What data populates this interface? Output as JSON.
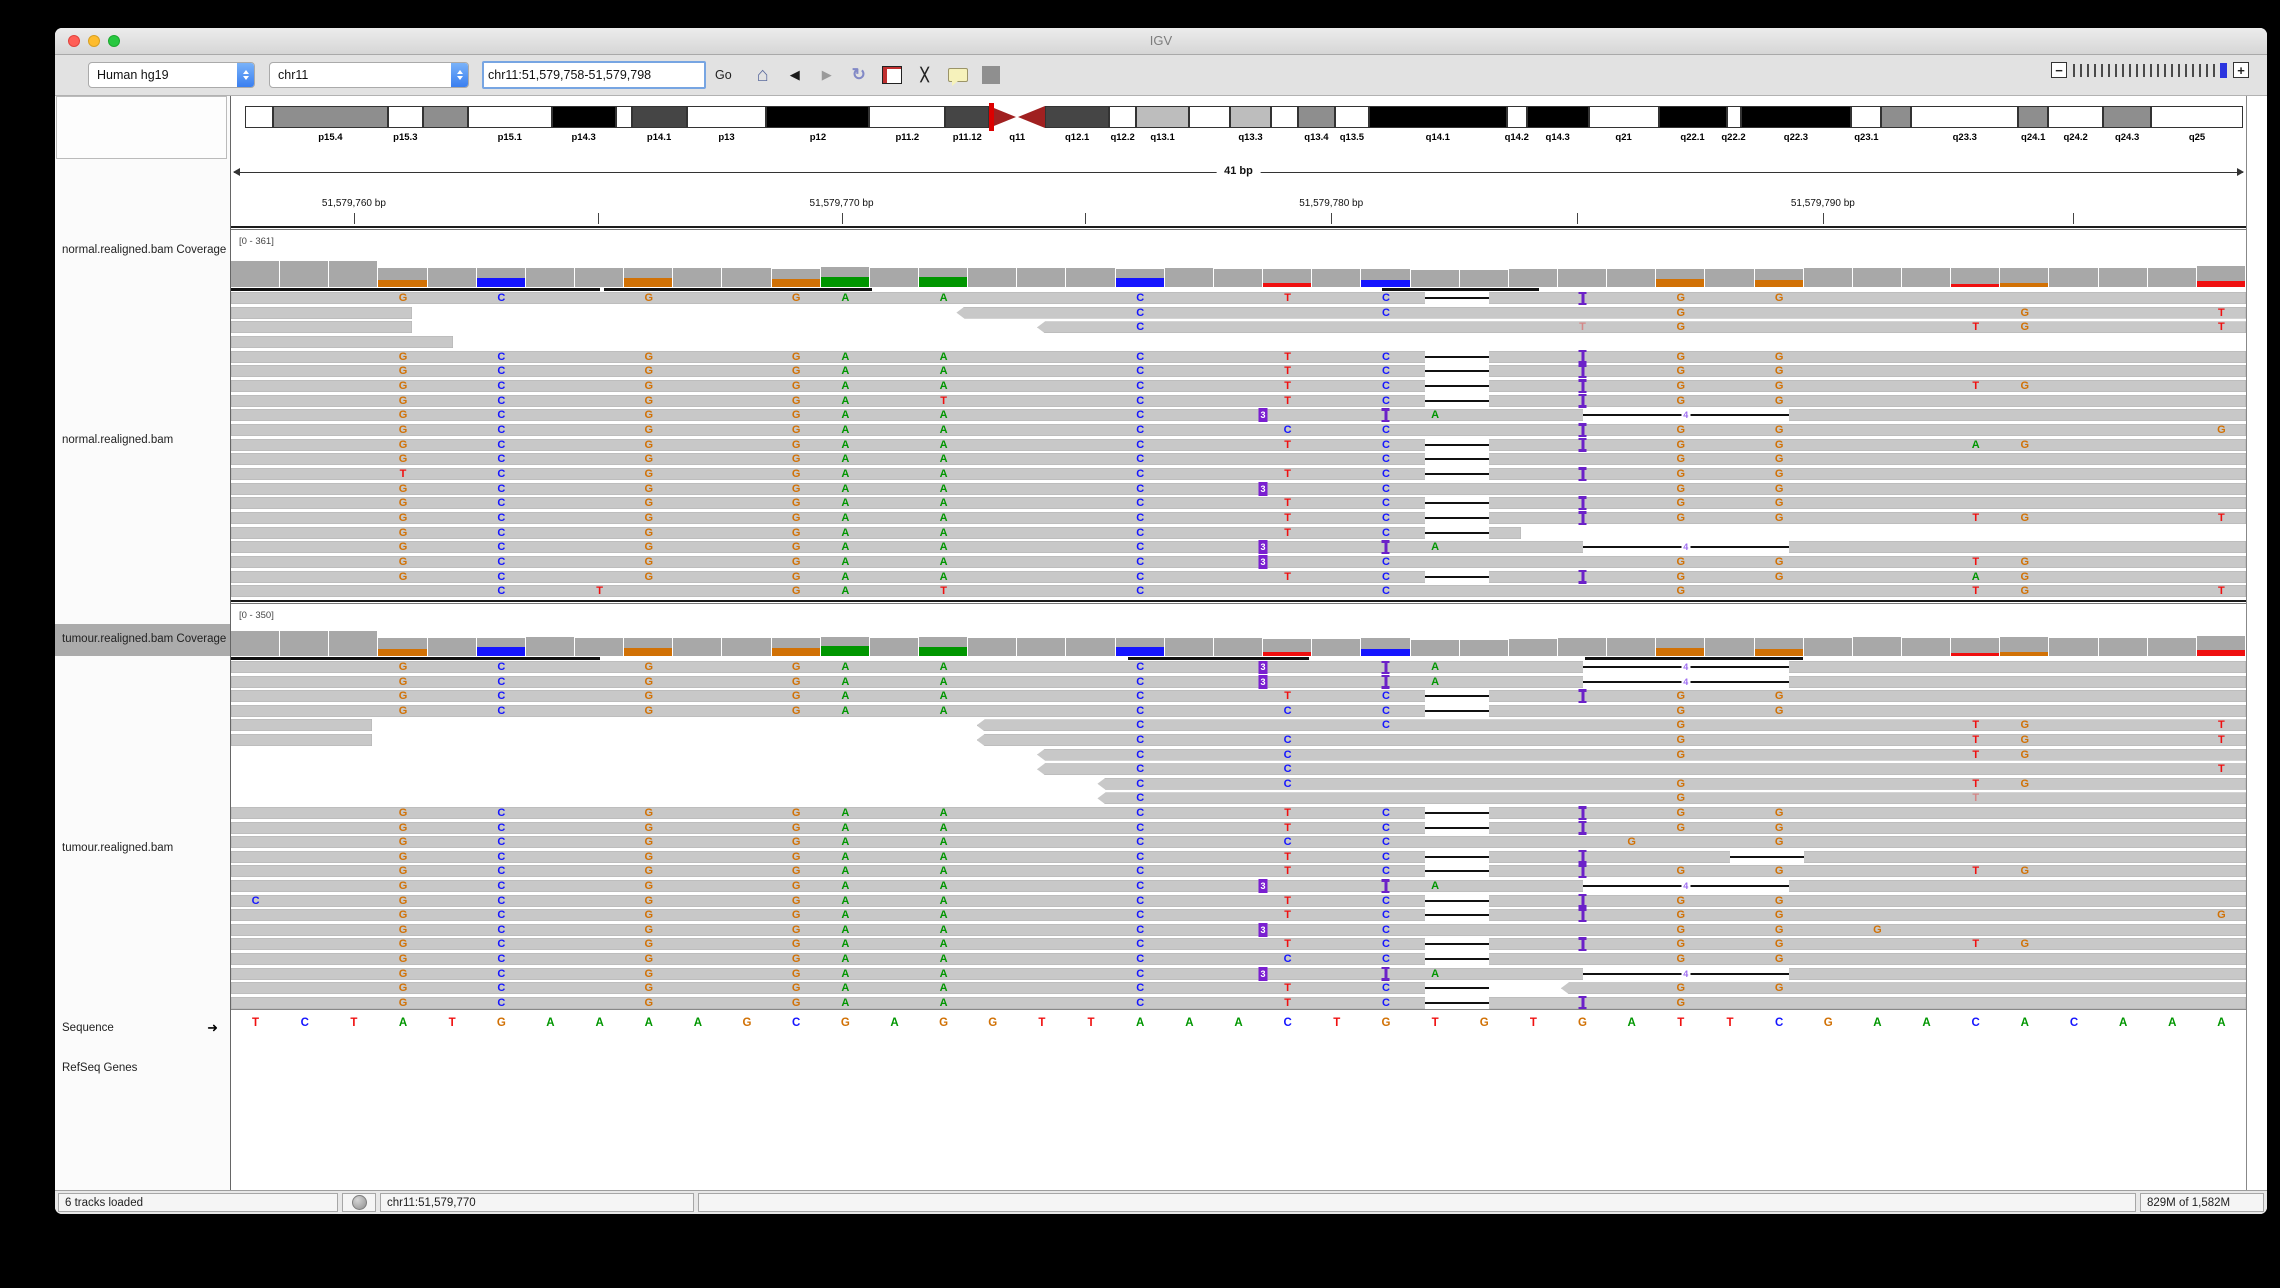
{
  "window": {
    "title": "IGV"
  },
  "toolbar": {
    "genome": "Human hg19",
    "chromosome": "chr11",
    "locus": "chr11:51,579,758-51,579,798",
    "go_label": "Go",
    "icons": [
      {
        "name": "home-icon",
        "glyph": "⌂"
      },
      {
        "name": "back-icon",
        "glyph": "◀"
      },
      {
        "name": "forward-icon",
        "glyph": "▶"
      },
      {
        "name": "refresh-icon",
        "glyph": "↻"
      },
      {
        "name": "region-tool-icon",
        "glyph": ""
      },
      {
        "name": "fit-window-icon",
        "glyph": "╳"
      },
      {
        "name": "tooltip-icon",
        "glyph": ""
      },
      {
        "name": "toolbar-separator",
        "glyph": ""
      }
    ],
    "zoom": {
      "tick_count": 21,
      "minus_label": "−",
      "plus_label": "+",
      "active_color": "#2b35df"
    }
  },
  "ideogram": {
    "shade_colors": {
      "w": "#ffffff",
      "l": "#bdbdbd",
      "g": "#8e8e8e",
      "d": "#454545",
      "b": "#000000"
    },
    "marker_pct": 37.25,
    "bands": [
      {
        "x": 0,
        "w": 1.4,
        "shade": "w",
        "label": ""
      },
      {
        "x": 1.4,
        "w": 5.75,
        "shade": "g",
        "label": "p15.4"
      },
      {
        "x": 7.15,
        "w": 1.75,
        "shade": "w",
        "label": "p15.3"
      },
      {
        "x": 8.9,
        "w": 2.25,
        "shade": "g",
        "label": ""
      },
      {
        "x": 11.15,
        "w": 4.2,
        "shade": "w",
        "label": "p15.1"
      },
      {
        "x": 15.35,
        "w": 3.2,
        "shade": "b",
        "label": "p14.3"
      },
      {
        "x": 18.55,
        "w": 0.8,
        "shade": "w",
        "label": ""
      },
      {
        "x": 19.35,
        "w": 2.75,
        "shade": "d",
        "label": "p14.1"
      },
      {
        "x": 22.1,
        "w": 4.0,
        "shade": "w",
        "label": "p13"
      },
      {
        "x": 26.1,
        "w": 5.15,
        "shade": "b",
        "label": "p12"
      },
      {
        "x": 31.25,
        "w": 3.8,
        "shade": "w",
        "label": "p11.2"
      },
      {
        "x": 35.05,
        "w": 2.2,
        "shade": "d",
        "label": "p11.12"
      },
      {
        "x": 37.25,
        "w": 2.8,
        "shade": "a",
        "label": "q11"
      },
      {
        "x": 40.05,
        "w": 3.2,
        "shade": "d",
        "label": "q12.1"
      },
      {
        "x": 43.25,
        "w": 1.35,
        "shade": "w",
        "label": "q12.2"
      },
      {
        "x": 44.6,
        "w": 2.65,
        "shade": "l",
        "label": "q13.1"
      },
      {
        "x": 47.25,
        "w": 2.05,
        "shade": "w",
        "label": ""
      },
      {
        "x": 49.3,
        "w": 2.05,
        "shade": "l",
        "label": "q13.3"
      },
      {
        "x": 51.35,
        "w": 1.35,
        "shade": "w",
        "label": ""
      },
      {
        "x": 52.7,
        "w": 1.85,
        "shade": "g",
        "label": "q13.4"
      },
      {
        "x": 54.55,
        "w": 1.7,
        "shade": "w",
        "label": "q13.5"
      },
      {
        "x": 56.25,
        "w": 6.9,
        "shade": "b",
        "label": "q14.1"
      },
      {
        "x": 63.15,
        "w": 1.0,
        "shade": "w",
        "label": "q14.2"
      },
      {
        "x": 64.15,
        "w": 3.1,
        "shade": "b",
        "label": "q14.3"
      },
      {
        "x": 67.25,
        "w": 3.5,
        "shade": "w",
        "label": "q21"
      },
      {
        "x": 70.75,
        "w": 3.4,
        "shade": "b",
        "label": "q22.1"
      },
      {
        "x": 74.15,
        "w": 0.7,
        "shade": "w",
        "label": "q22.2"
      },
      {
        "x": 74.85,
        "w": 5.55,
        "shade": "b",
        "label": "q22.3"
      },
      {
        "x": 80.4,
        "w": 1.5,
        "shade": "w",
        "label": "q23.1"
      },
      {
        "x": 81.9,
        "w": 1.5,
        "shade": "g",
        "label": ""
      },
      {
        "x": 83.4,
        "w": 5.35,
        "shade": "w",
        "label": "q23.3"
      },
      {
        "x": 88.75,
        "w": 1.5,
        "shade": "g",
        "label": "q24.1"
      },
      {
        "x": 90.25,
        "w": 2.75,
        "shade": "w",
        "label": "q24.2"
      },
      {
        "x": 93.0,
        "w": 2.4,
        "shade": "g",
        "label": "q24.3"
      },
      {
        "x": 95.4,
        "w": 4.6,
        "shade": "w",
        "label": "q25"
      }
    ]
  },
  "ruler": {
    "span_label": "41 bp",
    "ticks": [
      {
        "p": 6.1,
        "label": "51,579,760 bp"
      },
      {
        "p": 18.2,
        "label": ""
      },
      {
        "p": 30.3,
        "label": "51,579,770 bp"
      },
      {
        "p": 42.4,
        "label": ""
      },
      {
        "p": 54.6,
        "label": "51,579,780 bp"
      },
      {
        "p": 66.8,
        "label": ""
      },
      {
        "p": 79.0,
        "label": "51,579,790 bp"
      },
      {
        "p": 91.4,
        "label": ""
      }
    ]
  },
  "colors": {
    "bases": {
      "A": "#009600",
      "C": "#1515ff",
      "G": "#d17105",
      "T": "#ef1010"
    },
    "insertion": "#6b21c8",
    "read_gray": "#c8c8c8",
    "coverage_gray": "#a8a8a8"
  },
  "tracks": {
    "normal_coverage": {
      "label": "normal.realigned.bam Coverage",
      "range": "[0 - 361]",
      "heights": [
        1,
        1,
        1,
        0.72,
        0.73,
        0.72,
        0.74,
        0.72,
        0.73,
        0.72,
        0.72,
        0.7,
        0.76,
        0.73,
        0.74,
        0.72,
        0.73,
        0.72,
        0.71,
        0.72,
        0.7,
        0.68,
        0.69,
        0.7,
        0.64,
        0.64,
        0.69,
        0.7,
        0.71,
        0.7,
        0.71,
        0.71,
        0.72,
        0.74,
        0.72,
        0.72,
        0.74,
        0.73,
        0.73,
        0.73,
        0.8
      ],
      "alleles": {
        "3": [
          "G",
          0.4
        ],
        "5": [
          "C",
          0.5
        ],
        "8": [
          "G",
          0.45
        ],
        "11": [
          "G",
          0.45
        ],
        "12": [
          "A",
          0.5
        ],
        "14": [
          "A",
          0.5
        ],
        "18": [
          "C",
          0.5
        ],
        "21": [
          "T",
          0.2
        ],
        "23": [
          "C",
          0.4
        ],
        "29": [
          "G",
          0.45
        ],
        "31": [
          "G",
          0.4
        ],
        "35": [
          "T",
          0.15
        ],
        "36": [
          "G",
          0.2
        ],
        "40": [
          "T",
          0.3
        ]
      },
      "downsample_marks": [
        [
          0,
          18.3
        ],
        [
          18.5,
          31.8
        ],
        [
          57.1,
          64.9
        ]
      ]
    },
    "normal_reads": {
      "label": "normal.realigned.bam",
      "rows": [
        {
          "r": [
            {
              "s": 0,
              "e": 100,
              "m": "3G 5C 8G 11G 12A 14A 18C 21T 23C 29G 31G",
              "d": "24.3:1.3",
              "i": "27.5"
            }
          ]
        },
        {
          "r": [
            {
              "s": 0,
              "e": 9,
              "m": ""
            },
            {
              "s": 36,
              "e": 100,
              "m": "18C 23C 29G 36G 40T",
              "lp": 1
            }
          ]
        },
        {
          "r": [
            {
              "s": 0,
              "e": 9,
              "m": ""
            },
            {
              "s": 40,
              "e": 100,
              "m": "18C 27T* 29G 35T 36G 40T",
              "lp": 1
            }
          ]
        },
        {
          "r": [
            {
              "s": 0,
              "e": 11,
              "m": ""
            }
          ]
        },
        {
          "r": [
            {
              "s": 0,
              "e": 100,
              "m": "3G 5C 8G 11G 12A 14A 18C 21T 23C 29G 31G",
              "d": "24.3:1.3",
              "i": "27.5"
            }
          ]
        },
        {
          "r": [
            {
              "s": 0,
              "e": 100,
              "m": "3G 5C 8G 11G 12A 14A 18C 21T 23C 29G 31G",
              "d": "24.3:1.3",
              "i": "27.5"
            }
          ]
        },
        {
          "r": [
            {
              "s": 0,
              "e": 100,
              "m": "3G 5C 8G 11G 12A 14A 18C 21T 23C 29G 31G 35T 36G",
              "d": "24.3:1.3",
              "i": "27.5"
            }
          ]
        },
        {
          "r": [
            {
              "s": 0,
              "e": 100,
              "m": "3G 5C 8G 11G 12A 14T 18C 21T 23C 29G 31G",
              "d": "24.3:1.3",
              "i": "27.5"
            }
          ]
        },
        {
          "r": [
            {
              "s": 0,
              "e": 100,
              "m": "3G 5C 8G 11G 12A 14A 18C 24A",
              "d": "27.5:4.2:4",
              "i": "21:3 23.5"
            }
          ]
        },
        {
          "r": [
            {
              "s": 0,
              "e": 100,
              "m": "3G 5C 8G 11G 12A 14A 18C 21C 23C 29G 31G 40G",
              "i": "27.5"
            }
          ]
        },
        {
          "r": [
            {
              "s": 0,
              "e": 100,
              "m": "3G 5C 8G 11G 12A 14A 18C 21T 23C 29G 31G 35A 36G",
              "d": "24.3:1.3",
              "i": "27.5"
            }
          ]
        },
        {
          "r": [
            {
              "s": 0,
              "e": 100,
              "m": "3G 5C 8G 11G 12A 14A 18C 23C 29G 31G",
              "d": "24.3:1.3"
            }
          ]
        },
        {
          "r": [
            {
              "s": 0,
              "e": 100,
              "m": "3T 5C 8G 11G 12A 14A 18C 21T 23C 29G 31G",
              "d": "24.3:1.3",
              "i": "27.5"
            }
          ]
        },
        {
          "r": [
            {
              "s": 0,
              "e": 100,
              "m": "3G 5C 8G 11G 12A 14A 18C 23C 29G 31G",
              "i": "21:3"
            }
          ]
        },
        {
          "r": [
            {
              "s": 0,
              "e": 100,
              "m": "3G 5C 8G 11G 12A 14A 18C 21T 23C 29G 31G",
              "d": "24.3:1.3",
              "i": "27.5"
            }
          ]
        },
        {
          "r": [
            {
              "s": 0,
              "e": 100,
              "m": "3G 5C 8G 11G 12A 14A 18C 21T 23C 29G 31G 35T 36G 40T",
              "d": "24.3:1.3",
              "i": "27.5"
            }
          ]
        },
        {
          "r": [
            {
              "s": 0,
              "e": 64,
              "m": "3G 5C 8G 11G 12A 14A 18C 21T 23C",
              "d": "24.3:1.3"
            }
          ]
        },
        {
          "r": [
            {
              "s": 0,
              "e": 100,
              "m": "3G 5C 8G 11G 12A 14A 18C 24A",
              "d": "27.5:4.2:4",
              "i": "21:3 23.5"
            }
          ]
        },
        {
          "r": [
            {
              "s": 0,
              "e": 100,
              "m": "3G 5C 8G 11G 12A 14A 18C 23C 29G 31G 35T 36G",
              "i": "21:3"
            }
          ]
        },
        {
          "r": [
            {
              "s": 0,
              "e": 100,
              "m": "3G 5C 8G 11G 12A 14A 18C 21T 23C 29G 31G 35A 36G",
              "d": "24.3:1.3",
              "i": "27.5"
            }
          ]
        },
        {
          "r": [
            {
              "s": 0,
              "e": 100,
              "m": "5C 7T 11G 12A 14T 18C 23C 29G 35T 36G 40T"
            }
          ]
        }
      ]
    },
    "tumour_coverage": {
      "label": "tumour.realigned.bam Coverage",
      "range": "[0 - 350]",
      "selected": true,
      "heights": [
        0.95,
        0.95,
        0.95,
        0.7,
        0.71,
        0.7,
        0.72,
        0.7,
        0.71,
        0.7,
        0.7,
        0.68,
        0.74,
        0.71,
        0.72,
        0.7,
        0.71,
        0.7,
        0.69,
        0.7,
        0.68,
        0.66,
        0.67,
        0.68,
        0.62,
        0.62,
        0.67,
        0.68,
        0.69,
        0.68,
        0.69,
        0.69,
        0.7,
        0.72,
        0.7,
        0.7,
        0.72,
        0.71,
        0.71,
        0.71,
        0.78
      ],
      "alleles": {
        "3": [
          "G",
          0.4
        ],
        "5": [
          "C",
          0.5
        ],
        "8": [
          "G",
          0.45
        ],
        "11": [
          "G",
          0.45
        ],
        "12": [
          "A",
          0.5
        ],
        "14": [
          "A",
          0.5
        ],
        "18": [
          "C",
          0.5
        ],
        "21": [
          "T",
          0.25
        ],
        "23": [
          "C",
          0.4
        ],
        "29": [
          "G",
          0.45
        ],
        "31": [
          "G",
          0.4
        ],
        "35": [
          "T",
          0.15
        ],
        "36": [
          "G",
          0.2
        ],
        "40": [
          "T",
          0.3
        ]
      },
      "downsample_marks": [
        [
          0,
          18.3
        ],
        [
          44.5,
          53.5
        ],
        [
          67.2,
          78.0
        ]
      ]
    },
    "tumour_reads": {
      "label": "tumour.realigned.bam",
      "rows": [
        {
          "r": [
            {
              "s": 0,
              "e": 100,
              "m": "3G 5C 8G 11G 12A 14A 18C 24A",
              "d": "27.5:4.2:4",
              "i": "21:3 23.5"
            }
          ]
        },
        {
          "r": [
            {
              "s": 0,
              "e": 100,
              "m": "3G 5C 8G 11G 12A 14A 18C 24A",
              "d": "27.5:4.2:4",
              "i": "21:3 23.5"
            }
          ]
        },
        {
          "r": [
            {
              "s": 0,
              "e": 100,
              "m": "3G 5C 8G 11G 12A 14A 18C 21T 23C 29G 31G",
              "d": "24.3:1.3",
              "i": "27.5"
            }
          ]
        },
        {
          "r": [
            {
              "s": 0,
              "e": 100,
              "m": "3G 5C 8G 11G 12A 14A 18C 21C 23C 29G 31G",
              "d": "24.3:1.3"
            }
          ]
        },
        {
          "r": [
            {
              "s": 0,
              "e": 7,
              "m": ""
            },
            {
              "s": 37,
              "e": 100,
              "m": "18C 23C 29G 35T 36G 40T",
              "lp": 1
            }
          ]
        },
        {
          "r": [
            {
              "s": 0,
              "e": 7,
              "m": ""
            },
            {
              "s": 37,
              "e": 100,
              "m": "18C 21C 29G 35T 36G 40T",
              "lp": 1
            }
          ]
        },
        {
          "r": [
            {
              "s": 40,
              "e": 100,
              "m": "18C 21C 29G 35T 36G",
              "lp": 1
            }
          ]
        },
        {
          "r": [
            {
              "s": 40,
              "e": 100,
              "m": "18C 21C 40T",
              "lp": 1
            }
          ]
        },
        {
          "r": [
            {
              "s": 43,
              "e": 100,
              "m": "18C 21C 29G 35T 36G",
              "lp": 1
            }
          ]
        },
        {
          "r": [
            {
              "s": 43,
              "e": 100,
              "m": "18C 29G 35T*",
              "lp": 1
            }
          ]
        },
        {
          "r": [
            {
              "s": 0,
              "e": 100,
              "m": "3G 5C 8G 11G 12A 14A 18C 21T 23C 29G 31G",
              "d": "24.3:1.3",
              "i": "27.5"
            }
          ]
        },
        {
          "r": [
            {
              "s": 0,
              "e": 100,
              "m": "3G 5C 8G 11G 12A 14A 18C 21T 23C 29G 31G",
              "d": "24.3:1.3",
              "i": "27.5"
            }
          ]
        },
        {
          "r": [
            {
              "s": 0,
              "e": 100,
              "m": "3G 5C 8G 11G 12A 14A 18C 21C 23C 28G 31G"
            }
          ]
        },
        {
          "r": [
            {
              "s": 0,
              "e": 100,
              "m": "3G 5C 8G 11G 12A 14A 18C 21T 23C",
              "d": "24.3:1.3 30.5:1.5",
              "i": "27.5"
            }
          ]
        },
        {
          "r": [
            {
              "s": 0,
              "e": 100,
              "m": "3G 5C 8G 11G 12A 14A 18C 21T 23C 29G 31G 35T 36G",
              "d": "24.3:1.3",
              "i": "27.5"
            }
          ]
        },
        {
          "r": [
            {
              "s": 0,
              "e": 100,
              "m": "3G 5C 8G 11G 12A 14A 18C 24A",
              "d": "27.5:4.2:4",
              "i": "21:3 23.5"
            }
          ]
        },
        {
          "r": [
            {
              "s": 0,
              "e": 100,
              "m": "0C 3G 5C 8G 11G 12A 14A 18C 21T 23C 29G 31G",
              "d": "24.3:1.3",
              "i": "27.5"
            }
          ]
        },
        {
          "r": [
            {
              "s": 0,
              "e": 100,
              "m": "3G 5C 8G 11G 12A 14A 18C 21T 23C 29G 31G 40G",
              "d": "24.3:1.3",
              "i": "27.5"
            }
          ]
        },
        {
          "r": [
            {
              "s": 0,
              "e": 100,
              "m": "3G 5C 8G 11G 12A 14A 18C 23C 29G 31G 33G",
              "i": "21:3"
            }
          ]
        },
        {
          "r": [
            {
              "s": 0,
              "e": 100,
              "m": "3G 5C 8G 11G 12A 14A 18C 21T 23C 29G 31G 35T 36G",
              "d": "24.3:1.3",
              "i": "27.5"
            }
          ]
        },
        {
          "r": [
            {
              "s": 0,
              "e": 100,
              "m": "3G 5C 8G 11G 12A 14A 18C 21C 23C 29G 31G",
              "d": "24.3:1.3"
            }
          ]
        },
        {
          "r": [
            {
              "s": 0,
              "e": 100,
              "m": "3G 5C 8G 11G 12A 14A 18C 24A",
              "d": "27.5:4.2:4",
              "i": "21:3 23.5"
            }
          ]
        },
        {
          "r": [
            {
              "s": 0,
              "e": 62,
              "m": "3G 5C 8G 11G 12A 14A 18C 21T 23C",
              "d": "24.3:1.3"
            },
            {
              "s": 66,
              "e": 100,
              "m": "29G 31G",
              "lp": 1
            }
          ]
        },
        {
          "r": [
            {
              "s": 0,
              "e": 100,
              "m": "3G 5C 8G 11G 12A 14A 18C 21T 23C 29G",
              "d": "24.3:1.3",
              "i": "27.5"
            }
          ]
        }
      ]
    },
    "sequence": {
      "label": "Sequence",
      "arrow": "➜",
      "bases": "TCTATGAAAAGCGAGGTTAAACTGTGTGATTCGAACACAAA"
    },
    "refseq": {
      "label": "RefSeq Genes"
    }
  },
  "status_bar": {
    "tracks_loaded": "6 tracks loaded",
    "position": "chr11:51,579,770",
    "memory": "829M of 1,582M"
  }
}
